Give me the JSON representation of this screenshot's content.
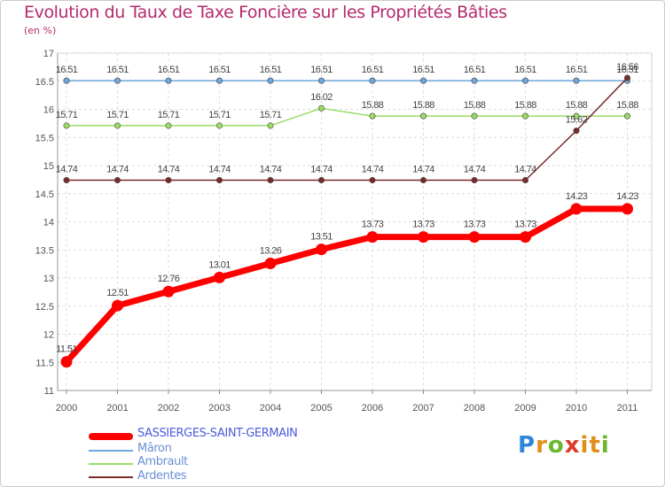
{
  "chart_data": {
    "type": "line",
    "title": "Evolution du Taux de Taxe Foncière sur les Propriétés Bâties",
    "ylabel": "(en %)",
    "xlabel": "",
    "categories": [
      "2000",
      "2001",
      "2002",
      "2003",
      "2004",
      "2005",
      "2006",
      "2007",
      "2008",
      "2009",
      "2010",
      "2011"
    ],
    "yticks": [
      "11",
      "11.5",
      "12",
      "12.5",
      "13",
      "13.5",
      "14",
      "14.5",
      "15",
      "15.5",
      "16",
      "16.5",
      "17"
    ],
    "ylim": [
      11,
      17
    ],
    "grid": true,
    "legend_position": "bottom-left",
    "series": [
      {
        "name": "SASSIERGES-SAINT-GERMAIN",
        "color": "#ff0000",
        "values": [
          11.51,
          12.51,
          12.76,
          13.01,
          13.26,
          13.51,
          13.73,
          13.73,
          13.73,
          13.73,
          14.23,
          14.23
        ],
        "labels": [
          "11.51",
          "12.51",
          "12.76",
          "13.01",
          "13.26",
          "13.51",
          "13.73",
          "13.73",
          "13.73",
          "13.73",
          "14.23",
          "14.23"
        ]
      },
      {
        "name": "Mâron",
        "color": "#6fa8dc",
        "values": [
          16.51,
          16.51,
          16.51,
          16.51,
          16.51,
          16.51,
          16.51,
          16.51,
          16.51,
          16.51,
          16.51,
          16.51
        ],
        "labels": [
          "16.51",
          "16.51",
          "16.51",
          "16.51",
          "16.51",
          "16.51",
          "16.51",
          "16.51",
          "16.51",
          "16.51",
          "16.51",
          "16.51"
        ]
      },
      {
        "name": "Ambrault",
        "color": "#99dd66",
        "values": [
          15.71,
          15.71,
          15.71,
          15.71,
          15.71,
          16.02,
          15.88,
          15.88,
          15.88,
          15.88,
          15.88,
          15.88
        ],
        "labels": [
          "15.71",
          "15.71",
          "15.71",
          "15.71",
          "15.71",
          "16.02",
          "15.88",
          "15.88",
          "15.88",
          "15.88",
          "15.88",
          "15.88"
        ]
      },
      {
        "name": "Ardentes",
        "color": "#7a2a2a",
        "values": [
          14.74,
          14.74,
          14.74,
          14.74,
          14.74,
          14.74,
          14.74,
          14.74,
          14.74,
          14.74,
          15.62,
          16.56
        ],
        "labels": [
          "14.74",
          "14.74",
          "14.74",
          "14.74",
          "14.74",
          "14.74",
          "14.74",
          "14.74",
          "14.74",
          "14.74",
          "15.62",
          "16.56"
        ]
      }
    ]
  },
  "legend": {
    "items": [
      {
        "label": "SASSIERGES-SAINT-GERMAIN",
        "color": "#ff0000"
      },
      {
        "label": "Mâron",
        "color": "#6fa8dc"
      },
      {
        "label": "Ambrault",
        "color": "#99dd66"
      },
      {
        "label": "Ardentes",
        "color": "#7a2a2a"
      }
    ]
  },
  "logo": {
    "letters": [
      "P",
      "r",
      "o",
      "x",
      "i",
      "t",
      "i"
    ],
    "colors": [
      "#2e86d6",
      "#e0901a",
      "#6ab82e",
      "#e03a2e",
      "#e0901a",
      "#e0901a",
      "#6ab82e"
    ]
  }
}
